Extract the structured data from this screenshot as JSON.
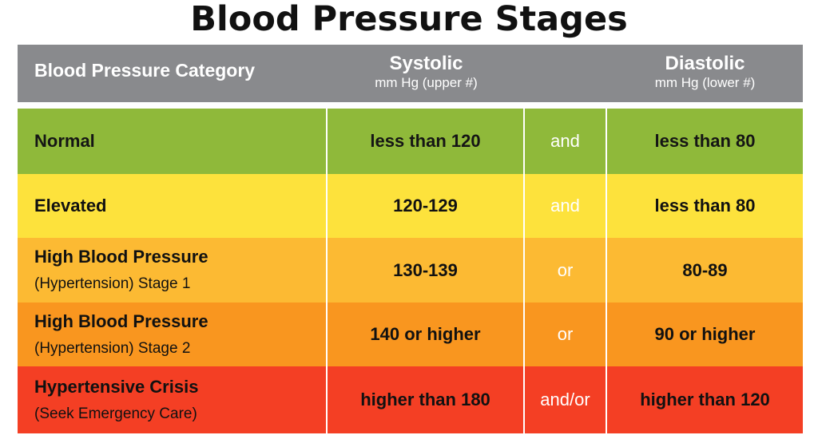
{
  "title": "Blood Pressure Stages",
  "header": {
    "category": "Blood Pressure Category",
    "systolic": "Systolic",
    "systolic_sub": "mm Hg (upper #)",
    "diastolic": "Diastolic",
    "diastolic_sub": "mm Hg (lower #)"
  },
  "rows": [
    {
      "category": "Normal",
      "subtitle": "",
      "systolic": "less than 120",
      "conjunction": "and",
      "diastolic": "less than 80",
      "color": "#8fb93a"
    },
    {
      "category": "Elevated",
      "subtitle": "",
      "systolic": "120-129",
      "conjunction": "and",
      "diastolic": "less than 80",
      "color": "#fde23c"
    },
    {
      "category": "High Blood Pressure",
      "subtitle": "(Hypertension) Stage 1",
      "systolic": "130-139",
      "conjunction": "or",
      "diastolic": "80-89",
      "color": "#fcba33"
    },
    {
      "category": "High Blood Pressure",
      "subtitle": "(Hypertension) Stage 2",
      "systolic": "140 or higher",
      "conjunction": "or",
      "diastolic": "90 or higher",
      "color": "#f9961f"
    },
    {
      "category": "Hypertensive Crisis",
      "subtitle": "(Seek Emergency Care)",
      "systolic": "higher than 180",
      "conjunction": "and/or",
      "diastolic": "higher than 120",
      "color": "#f43f24"
    }
  ],
  "colors": {
    "header_bg": "#898a8d",
    "header_text": "#ffffff"
  }
}
